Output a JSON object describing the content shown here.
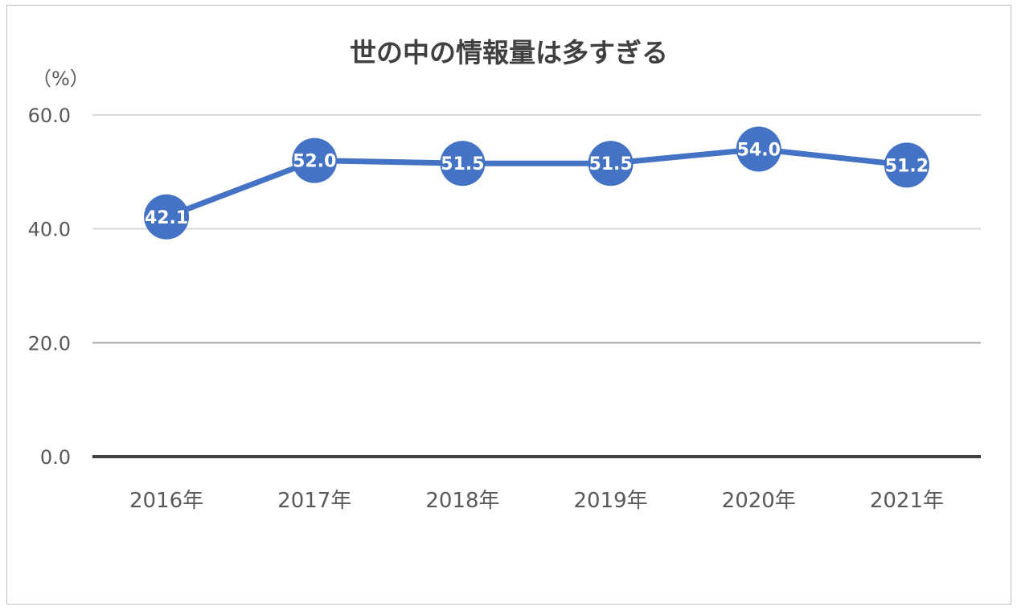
{
  "chart_data": {
    "type": "line",
    "title": "世の中の情報量は多すぎる",
    "ylabel": "（%）",
    "xlabel": "",
    "categories": [
      "2016年",
      "2017年",
      "2018年",
      "2019年",
      "2020年",
      "2021年"
    ],
    "series": [
      {
        "values": [
          42.1,
          52.0,
          51.5,
          51.5,
          54.0,
          51.2
        ],
        "color": "#4472C4"
      }
    ],
    "data_labels": [
      "42.1",
      "52.0",
      "51.5",
      "51.5",
      "54.0",
      "51.2"
    ],
    "ylim": [
      0,
      60
    ],
    "yticks": [
      0,
      20,
      40,
      60
    ],
    "ytick_labels": [
      "0.0",
      "20.0",
      "40.0",
      "60.0"
    ],
    "grid": true,
    "legend": "none"
  }
}
